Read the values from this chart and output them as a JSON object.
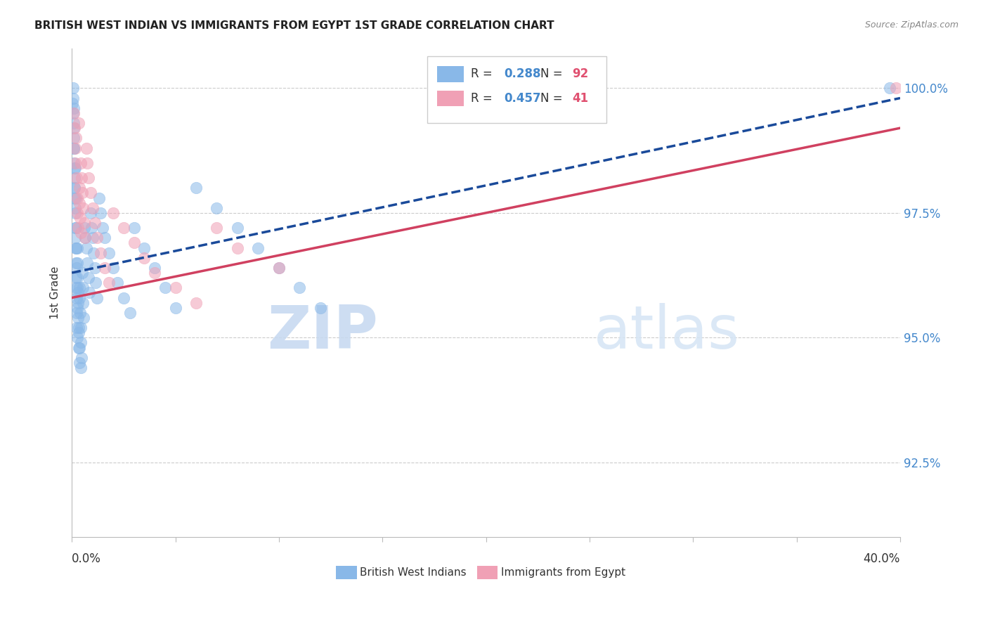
{
  "title": "BRITISH WEST INDIAN VS IMMIGRANTS FROM EGYPT 1ST GRADE CORRELATION CHART",
  "source": "Source: ZipAtlas.com",
  "ylabel": "1st Grade",
  "xmin": 0.0,
  "xmax": 40.0,
  "ymin": 91.0,
  "ymax": 100.8,
  "blue_color": "#89b8e8",
  "pink_color": "#f0a0b5",
  "blue_line_color": "#1a4a9a",
  "pink_line_color": "#d04060",
  "r_color": "#4488cc",
  "n_color": "#e05070",
  "text_color": "#333333",
  "grid_color": "#cccccc",
  "axis_color": "#bbbbbb",
  "yticks": [
    92.5,
    95.0,
    97.5,
    100.0
  ],
  "ytick_labels": [
    "92.5%",
    "95.0%",
    "97.5%",
    "100.0%"
  ],
  "blue_r": "0.288",
  "blue_n": "92",
  "pink_r": "0.457",
  "pink_n": "41",
  "legend_label_1": "British West Indians",
  "legend_label_2": "Immigrants from Egypt",
  "blue_line_x": [
    0.0,
    40.0
  ],
  "blue_line_y": [
    96.3,
    99.8
  ],
  "pink_line_x": [
    0.0,
    40.0
  ],
  "pink_line_y": [
    95.8,
    99.2
  ],
  "blue_scatter_x": [
    0.04,
    0.05,
    0.06,
    0.07,
    0.08,
    0.09,
    0.1,
    0.1,
    0.11,
    0.12,
    0.13,
    0.14,
    0.15,
    0.15,
    0.16,
    0.17,
    0.18,
    0.18,
    0.19,
    0.2,
    0.21,
    0.22,
    0.23,
    0.24,
    0.25,
    0.26,
    0.27,
    0.28,
    0.29,
    0.3,
    0.31,
    0.32,
    0.33,
    0.35,
    0.36,
    0.38,
    0.4,
    0.42,
    0.45,
    0.48,
    0.5,
    0.52,
    0.55,
    0.58,
    0.6,
    0.65,
    0.7,
    0.75,
    0.8,
    0.85,
    0.9,
    0.95,
    1.0,
    1.05,
    1.1,
    1.15,
    1.2,
    1.3,
    1.4,
    1.5,
    1.6,
    1.8,
    2.0,
    2.2,
    2.5,
    2.8,
    3.0,
    3.5,
    4.0,
    4.5,
    5.0,
    6.0,
    7.0,
    8.0,
    9.0,
    10.0,
    11.0,
    12.0,
    0.08,
    0.1,
    0.12,
    0.14,
    0.16,
    0.18,
    0.2,
    0.22,
    0.25,
    0.28,
    0.32,
    0.38,
    0.45,
    39.5
  ],
  "blue_scatter_y": [
    99.7,
    100.0,
    99.8,
    99.5,
    99.3,
    99.0,
    98.8,
    99.6,
    98.5,
    98.2,
    98.0,
    97.8,
    97.5,
    98.4,
    97.2,
    97.0,
    96.8,
    97.8,
    96.5,
    96.2,
    96.0,
    95.8,
    95.5,
    95.2,
    95.0,
    96.8,
    96.5,
    96.2,
    95.9,
    95.7,
    95.4,
    95.1,
    94.8,
    94.5,
    96.0,
    95.8,
    95.5,
    95.2,
    94.9,
    94.6,
    96.3,
    96.0,
    95.7,
    95.4,
    97.2,
    97.0,
    96.8,
    96.5,
    96.2,
    95.9,
    97.5,
    97.2,
    97.0,
    96.7,
    96.4,
    96.1,
    95.8,
    97.8,
    97.5,
    97.2,
    97.0,
    96.7,
    96.4,
    96.1,
    95.8,
    95.5,
    97.2,
    96.8,
    96.4,
    96.0,
    95.6,
    98.0,
    97.6,
    97.2,
    96.8,
    96.4,
    96.0,
    95.6,
    99.2,
    98.8,
    98.4,
    98.0,
    97.6,
    97.2,
    96.8,
    96.4,
    96.0,
    95.6,
    95.2,
    94.8,
    94.4,
    100.0
  ],
  "pink_scatter_x": [
    0.1,
    0.13,
    0.15,
    0.17,
    0.2,
    0.22,
    0.25,
    0.28,
    0.3,
    0.33,
    0.35,
    0.38,
    0.4,
    0.43,
    0.45,
    0.48,
    0.5,
    0.55,
    0.6,
    0.65,
    0.7,
    0.75,
    0.8,
    0.9,
    1.0,
    1.1,
    1.2,
    1.4,
    1.6,
    1.8,
    2.0,
    2.5,
    3.0,
    3.5,
    4.0,
    5.0,
    6.0,
    7.0,
    8.0,
    10.0,
    39.8
  ],
  "pink_scatter_y": [
    99.5,
    99.2,
    98.8,
    98.5,
    99.0,
    98.2,
    97.8,
    97.5,
    97.2,
    99.3,
    98.0,
    97.7,
    97.4,
    97.1,
    98.5,
    98.2,
    97.9,
    97.6,
    97.3,
    97.0,
    98.8,
    98.5,
    98.2,
    97.9,
    97.6,
    97.3,
    97.0,
    96.7,
    96.4,
    96.1,
    97.5,
    97.2,
    96.9,
    96.6,
    96.3,
    96.0,
    95.7,
    97.2,
    96.8,
    96.4,
    100.0
  ]
}
